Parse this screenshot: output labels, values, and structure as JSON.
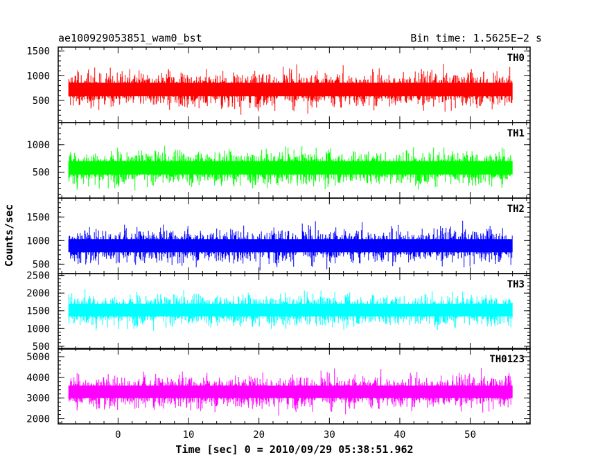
{
  "header": {
    "left": "ae100929053851_wam0_bst",
    "right": "Bin time: 1.5625E−2 s"
  },
  "chart_data": {
    "type": "line",
    "title": "ae100929053851_wam0_bst",
    "subtitle": "Bin time: 1.5625E−2 s",
    "xlabel": "Time [sec] 0 = 2010/09/29 05:38:51.962",
    "ylabel": "Counts/sec",
    "xlim": [
      -8.5,
      58.5
    ],
    "x_ticks": [
      0,
      10,
      20,
      30,
      40,
      50
    ],
    "x_data_range": [
      -7.0,
      56.0
    ],
    "grid": false,
    "legend": "none",
    "panels": [
      {
        "name": "TH0",
        "color": "#ff0000",
        "ylim": [
          50,
          1580
        ],
        "y_ticks": [
          500,
          1000,
          1500
        ],
        "mean": 720,
        "low": 110,
        "high": 1480
      },
      {
        "name": "TH1",
        "color": "#00ff00",
        "ylim": [
          30,
          1400
        ],
        "y_ticks": [
          500,
          1000
        ],
        "mean": 580,
        "low": 100,
        "high": 1330
      },
      {
        "name": "TH2",
        "color": "#0000ff",
        "ylim": [
          300,
          1900
        ],
        "y_ticks": [
          500,
          1000,
          1500
        ],
        "mean": 890,
        "low": 400,
        "high": 1800
      },
      {
        "name": "TH3",
        "color": "#00ffff",
        "ylim": [
          420,
          2550
        ],
        "y_ticks": [
          500,
          1000,
          1500,
          2000,
          2500
        ],
        "mean": 1520,
        "low": 650,
        "high": 2400
      },
      {
        "name": "TH0123",
        "color": "#ff00ff",
        "ylim": [
          1750,
          5400
        ],
        "y_ticks": [
          2000,
          3000,
          4000,
          5000
        ],
        "mean": 3300,
        "low": 2050,
        "high": 5100
      }
    ]
  }
}
